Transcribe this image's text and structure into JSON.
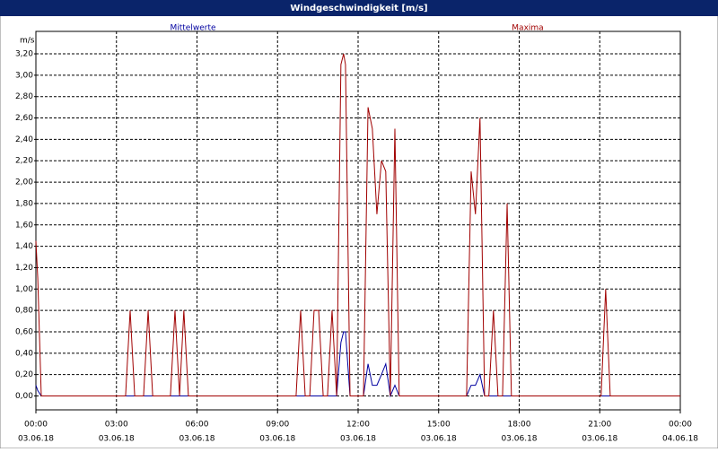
{
  "chart_data": {
    "type": "line",
    "title": "Windgeschwindigkeit [m/s]",
    "y_label": "m/s",
    "x": [
      0,
      0.07,
      0.2,
      3.34,
      3.51,
      3.68,
      4.01,
      4.18,
      4.35,
      5.01,
      5.18,
      5.35,
      5.51,
      5.68,
      9.69,
      9.86,
      10.03,
      10.2,
      10.36,
      10.53,
      10.7,
      10.86,
      11.03,
      11.2,
      11.36,
      11.46,
      11.53,
      11.7,
      12.2,
      12.37,
      12.53,
      12.7,
      12.87,
      13.03,
      13.2,
      13.37,
      13.53,
      16.04,
      16.21,
      16.37,
      16.54,
      16.71,
      16.87,
      17.04,
      17.21,
      17.38,
      17.55,
      17.71,
      21.05,
      21.22,
      21.39,
      24
    ],
    "series": [
      {
        "name": "Mittelwerte",
        "color": "#0000a0",
        "values": [
          0.1,
          0.05,
          0,
          0,
          0,
          0,
          0,
          0,
          0,
          0,
          0,
          0,
          0,
          0,
          0,
          0,
          0,
          0,
          0,
          0,
          0,
          0,
          0,
          0,
          0.5,
          0.6,
          0.6,
          0,
          0,
          0.3,
          0.1,
          0.1,
          0.2,
          0.3,
          0,
          0.1,
          0,
          0,
          0.1,
          0.1,
          0.2,
          0,
          0,
          0,
          0,
          0,
          0,
          0,
          0,
          0,
          0,
          0
        ]
      },
      {
        "name": "Maxima",
        "color": "#a00000",
        "values": [
          1.45,
          1.1,
          0,
          0,
          0.8,
          0,
          0,
          0.8,
          0,
          0,
          0.8,
          0,
          0.8,
          0,
          0,
          0.8,
          0,
          0,
          0.8,
          0.8,
          0,
          0,
          0.8,
          0,
          3.1,
          3.2,
          3.1,
          0,
          0,
          2.7,
          2.5,
          1.7,
          2.2,
          2.1,
          0,
          2.5,
          0,
          0,
          2.1,
          1.7,
          2.6,
          0,
          0,
          0.8,
          0,
          0,
          1.8,
          0,
          0,
          1.0,
          0,
          0
        ]
      }
    ],
    "xlim": [
      0,
      24
    ],
    "xticks": [
      {
        "value": 0,
        "label": "00:00",
        "date": "03.06.18"
      },
      {
        "value": 3,
        "label": "03:00",
        "date": "03.06.18"
      },
      {
        "value": 6,
        "label": "06:00",
        "date": "03.06.18"
      },
      {
        "value": 9,
        "label": "09:00",
        "date": "03.06.18"
      },
      {
        "value": 12,
        "label": "12:00",
        "date": "03.06.18"
      },
      {
        "value": 15,
        "label": "15:00",
        "date": "03.06.18"
      },
      {
        "value": 18,
        "label": "18:00",
        "date": "03.06.18"
      },
      {
        "value": 21,
        "label": "21:00",
        "date": "03.06.18"
      },
      {
        "value": 24,
        "label": "00:00",
        "date": "04.06.18"
      }
    ],
    "ylim": [
      -0.13,
      3.41
    ],
    "yticks": [
      {
        "value": 0,
        "label": "0,00"
      },
      {
        "value": 0.2,
        "label": "0,20"
      },
      {
        "value": 0.4,
        "label": "0,40"
      },
      {
        "value": 0.6,
        "label": "0,60"
      },
      {
        "value": 0.8,
        "label": "0,80"
      },
      {
        "value": 1.0,
        "label": "1,00"
      },
      {
        "value": 1.2,
        "label": "1,20"
      },
      {
        "value": 1.4,
        "label": "1,40"
      },
      {
        "value": 1.6,
        "label": "1,60"
      },
      {
        "value": 1.8,
        "label": "1,80"
      },
      {
        "value": 2.0,
        "label": "2,00"
      },
      {
        "value": 2.2,
        "label": "2,20"
      },
      {
        "value": 2.4,
        "label": "2,40"
      },
      {
        "value": 2.6,
        "label": "2,60"
      },
      {
        "value": 2.8,
        "label": "2,80"
      },
      {
        "value": 3.0,
        "label": "3,00"
      },
      {
        "value": 3.2,
        "label": "3,20"
      }
    ],
    "grid": true
  }
}
